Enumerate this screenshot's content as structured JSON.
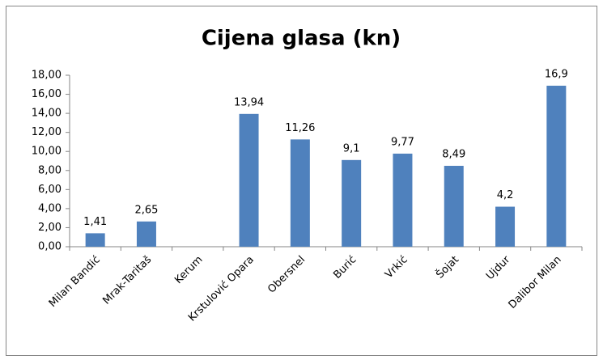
{
  "chart_data": {
    "type": "bar",
    "title": "Cijena glasa (kn)",
    "categories": [
      "Milan Bandić",
      "Mrak-Taritaš",
      "Kerum",
      "Krstulović Opara",
      "Obersnel",
      "Burić",
      "Vrkić",
      "Šojat",
      "Ujdur",
      "Dalibor Milan"
    ],
    "values": [
      1.41,
      2.65,
      null,
      13.94,
      11.26,
      9.1,
      9.77,
      8.49,
      4.2,
      16.9
    ],
    "value_labels": [
      "1,41",
      "2,65",
      null,
      "13,94",
      "11,26",
      "9,1",
      "9,77",
      "8,49",
      "4,2",
      "16,9"
    ],
    "color": "#4f81bd",
    "ylim": [
      0,
      18
    ],
    "yticks": [
      {
        "value": 0,
        "label": "0,00"
      },
      {
        "value": 2,
        "label": "2,00"
      },
      {
        "value": 4,
        "label": "4,00"
      },
      {
        "value": 6,
        "label": "6,00"
      },
      {
        "value": 8,
        "label": "8,00"
      },
      {
        "value": 10,
        "label": "10,00"
      },
      {
        "value": 12,
        "label": "12,00"
      },
      {
        "value": 14,
        "label": "14,00"
      },
      {
        "value": 16,
        "label": "16,00"
      },
      {
        "value": 18,
        "label": "18,00"
      }
    ],
    "grid": false
  }
}
